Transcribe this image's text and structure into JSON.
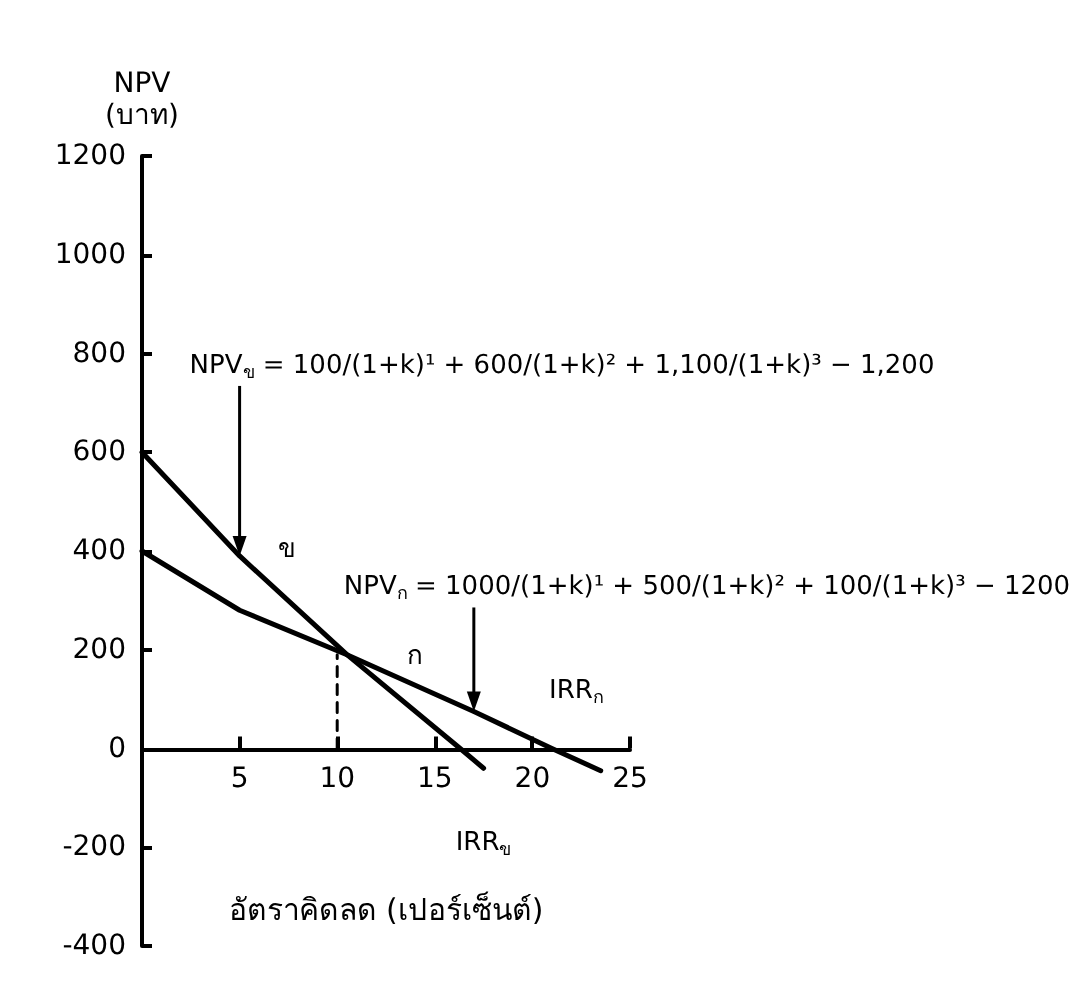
{
  "chart_data": {
    "type": "line",
    "ylabel": "NPV\n(บาท)",
    "xlabel": "อัตราคิดลด (เปอร์เซ็นต์)",
    "xlim": [
      0,
      25
    ],
    "xticks": [
      5,
      10,
      15,
      20,
      25
    ],
    "ylim": [
      -400,
      1200
    ],
    "yticks": [
      -400,
      -200,
      0,
      200,
      400,
      600,
      800,
      1000,
      1200
    ],
    "marker": "none",
    "series": [
      {
        "color": "#000000",
        "x": [
          0,
          5,
          10.5,
          16.3,
          17.5
        ],
        "values": [
          600,
          390,
          190,
          0,
          -40
        ],
        "line_style": "solid"
      },
      {
        "color": "#000000",
        "x": [
          0,
          5,
          10.5,
          17,
          21,
          23.5
        ],
        "values": [
          400,
          280,
          190,
          75,
          0,
          -45
        ],
        "line_style": "solid"
      },
      {
        "color": "#000000",
        "x": [
          10,
          10
        ],
        "values": [
          0,
          190
        ],
        "line_style": "dashed"
      }
    ],
    "annotations": [
      {
        "text": "NPV$_{ข}$ = 100/(1+k)¹ + 600/(1+k)² + 1,100/(1+k)³ − 1,200",
        "x": 5,
        "y": 390
      },
      {
        "text": "NPV$_{ก}$ = 1000/(1+k)¹ + 500/(1+k)² + 100/(1+k)³ − 1200",
        "x": 17,
        "y": 75
      },
      {
        "text": "ข",
        "x": 6,
        "y": 354
      },
      {
        "text": "ก",
        "x": 14,
        "y": 128
      },
      {
        "text": "IRR$_{ก}$",
        "x": 21,
        "y": 0
      },
      "IRR$_{ข}$"
    ]
  }
}
